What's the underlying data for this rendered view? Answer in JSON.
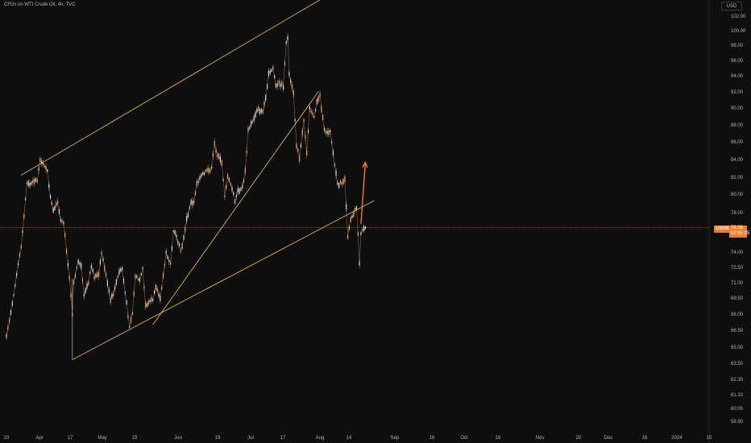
{
  "header": {
    "title": "CFDs on WTI Crude Oil, 4h, TVC",
    "currency": "USD"
  },
  "last_price": {
    "symbol": "USOIL",
    "value": "76.36",
    "countdown": "02:55:25"
  },
  "chart_data": {
    "type": "candlestick",
    "title": "CFDs on WTI Crude Oil, 4h, TVC",
    "y_tick_labels": [
      "102.00",
      "100.00",
      "98.00",
      "96.00",
      "94.00",
      "92.00",
      "90.00",
      "88.00",
      "86.00",
      "84.00",
      "82.00",
      "80.00",
      "78.00",
      "74.00",
      "72.50",
      "71.00",
      "69.50",
      "68.00",
      "66.50",
      "65.00",
      "63.50",
      "62.30",
      "61.10",
      "60.00",
      "58.90"
    ],
    "x_tick_labels": [
      "20",
      "Apr",
      "17",
      "May",
      "15",
      "Jun",
      "19",
      "Jul",
      "17",
      "Aug",
      "14",
      "Sep",
      "18",
      "Oct",
      "16",
      "Nov",
      "20",
      "Dec",
      "18",
      "2024",
      "15"
    ],
    "ylim": [
      58.5,
      102.5
    ],
    "price_path": [
      [
        "2023-03-20",
        66.0
      ],
      [
        "2023-03-22",
        67.5
      ],
      [
        "2023-03-24",
        69.2
      ],
      [
        "2023-03-28",
        72.9
      ],
      [
        "2023-03-30",
        74.4
      ],
      [
        "2023-04-03",
        80.6
      ],
      [
        "2023-04-05",
        80.4
      ],
      [
        "2023-04-07",
        80.8
      ],
      [
        "2023-04-10",
        80.8
      ],
      [
        "2023-04-12",
        82.6
      ],
      [
        "2023-04-14",
        82.5
      ],
      [
        "2023-04-17",
        81.6
      ],
      [
        "2023-04-19",
        79.2
      ],
      [
        "2023-04-21",
        77.9
      ],
      [
        "2023-04-24",
        78.7
      ],
      [
        "2023-04-26",
        76.9
      ],
      [
        "2023-04-28",
        76.8
      ],
      [
        "2023-05-02",
        71.7
      ],
      [
        "2023-05-04",
        68.3
      ],
      [
        "2023-05-05",
        71.3
      ],
      [
        "2023-05-08",
        73.2
      ],
      [
        "2023-05-10",
        72.6
      ],
      [
        "2023-05-12",
        70.0
      ],
      [
        "2023-05-15",
        71.1
      ],
      [
        "2023-05-17",
        72.8
      ],
      [
        "2023-05-19",
        71.7
      ],
      [
        "2023-05-22",
        71.9
      ],
      [
        "2023-05-24",
        74.0
      ],
      [
        "2023-05-26",
        72.6
      ],
      [
        "2023-05-30",
        69.5
      ],
      [
        "2023-06-01",
        70.1
      ],
      [
        "2023-06-05",
        72.2
      ],
      [
        "2023-06-07",
        72.5
      ],
      [
        "2023-06-09",
        70.2
      ],
      [
        "2023-06-12",
        67.1
      ],
      [
        "2023-06-14",
        68.3
      ],
      [
        "2023-06-16",
        71.8
      ],
      [
        "2023-06-19",
        71.3
      ],
      [
        "2023-06-21",
        72.4
      ],
      [
        "2023-06-23",
        69.0
      ],
      [
        "2023-06-26",
        69.4
      ],
      [
        "2023-06-28",
        69.6
      ],
      [
        "2023-06-30",
        70.6
      ],
      [
        "2023-07-03",
        69.8
      ],
      [
        "2023-07-05",
        71.8
      ],
      [
        "2023-07-07",
        73.9
      ],
      [
        "2023-07-10",
        72.9
      ],
      [
        "2023-07-12",
        76.1
      ],
      [
        "2023-07-14",
        75.4
      ],
      [
        "2023-07-17",
        74.2
      ],
      [
        "2023-07-19",
        75.3
      ],
      [
        "2023-07-21",
        77.1
      ],
      [
        "2023-07-24",
        78.7
      ],
      [
        "2023-07-26",
        78.8
      ],
      [
        "2023-07-28",
        80.6
      ],
      [
        "2023-08-01",
        81.4
      ],
      [
        "2023-08-03",
        81.6
      ],
      [
        "2023-08-07",
        81.9
      ],
      [
        "2023-08-09",
        84.3
      ],
      [
        "2023-08-11",
        83.2
      ],
      [
        "2023-08-14",
        82.5
      ],
      [
        "2023-08-16",
        79.4
      ],
      [
        "2023-08-18",
        81.1
      ],
      [
        "2023-08-21",
        80.1
      ],
      [
        "2023-08-23",
        78.8
      ],
      [
        "2023-08-25",
        79.8
      ],
      [
        "2023-08-28",
        80.1
      ],
      [
        "2023-08-30",
        81.6
      ],
      [
        "2023-09-01",
        85.5
      ],
      [
        "2023-09-05",
        86.7
      ],
      [
        "2023-09-07",
        87.5
      ],
      [
        "2023-09-11",
        87.3
      ],
      [
        "2023-09-13",
        88.5
      ],
      [
        "2023-09-15",
        90.8
      ],
      [
        "2023-09-18",
        91.5
      ],
      [
        "2023-09-20",
        89.6
      ],
      [
        "2023-09-22",
        90.0
      ],
      [
        "2023-09-25",
        89.7
      ],
      [
        "2023-09-27",
        93.7
      ],
      [
        "2023-09-28",
        94.4
      ],
      [
        "2023-09-29",
        90.8
      ],
      [
        "2023-10-02",
        88.9
      ],
      [
        "2023-10-04",
        84.2
      ],
      [
        "2023-10-06",
        82.8
      ],
      [
        "2023-10-09",
        86.4
      ],
      [
        "2023-10-11",
        83.5
      ],
      [
        "2023-10-13",
        87.7
      ],
      [
        "2023-10-16",
        86.7
      ],
      [
        "2023-10-18",
        88.3
      ],
      [
        "2023-10-20",
        88.8
      ],
      [
        "2023-10-23",
        85.5
      ],
      [
        "2023-10-25",
        85.4
      ],
      [
        "2023-10-27",
        85.5
      ],
      [
        "2023-10-30",
        82.3
      ],
      [
        "2023-11-01",
        80.4
      ],
      [
        "2023-11-03",
        80.5
      ],
      [
        "2023-11-06",
        80.8
      ],
      [
        "2023-11-08",
        75.6
      ],
      [
        "2023-11-10",
        77.2
      ],
      [
        "2023-11-14",
        78.3
      ],
      [
        "2023-11-16",
        73.0
      ],
      [
        "2023-11-17",
        75.9
      ],
      [
        "2023-11-21",
        76.4
      ]
    ],
    "trendlines": [
      {
        "name": "upper-channel",
        "from": [
          "2023-03-30",
          81.3
        ],
        "to": [
          "2023-11-23",
          100.6
        ]
      },
      {
        "name": "lower-channel",
        "from": [
          "2023-05-04",
          63.9
        ],
        "to": [
          "2023-11-26",
          78.9
        ]
      },
      {
        "name": "rising-support",
        "from": [
          "2023-06-28",
          67.2
        ],
        "to": [
          "2023-10-19",
          89.2
        ]
      }
    ],
    "projection_arrow": {
      "from": [
        "2023-11-17",
        76.7
      ],
      "to": [
        "2023-11-20",
        82.5
      ]
    },
    "last_price_line": 76.36,
    "colors": {
      "candle": "#f0a868",
      "trendline": "#d8b24a",
      "arrow": "#f77c2a",
      "price_line": "#f77c2a",
      "background": "#0e0e0e"
    },
    "grid": false
  }
}
